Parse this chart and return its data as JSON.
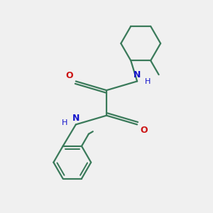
{
  "background_color": "#f0f0f0",
  "bond_color": "#3a7a5a",
  "N_color": "#1414cc",
  "O_color": "#cc1414",
  "line_width": 1.6,
  "figsize": [
    3.0,
    3.0
  ],
  "dpi": 100,
  "xlim": [
    -2.2,
    2.8
  ],
  "ylim": [
    -3.0,
    2.8
  ]
}
